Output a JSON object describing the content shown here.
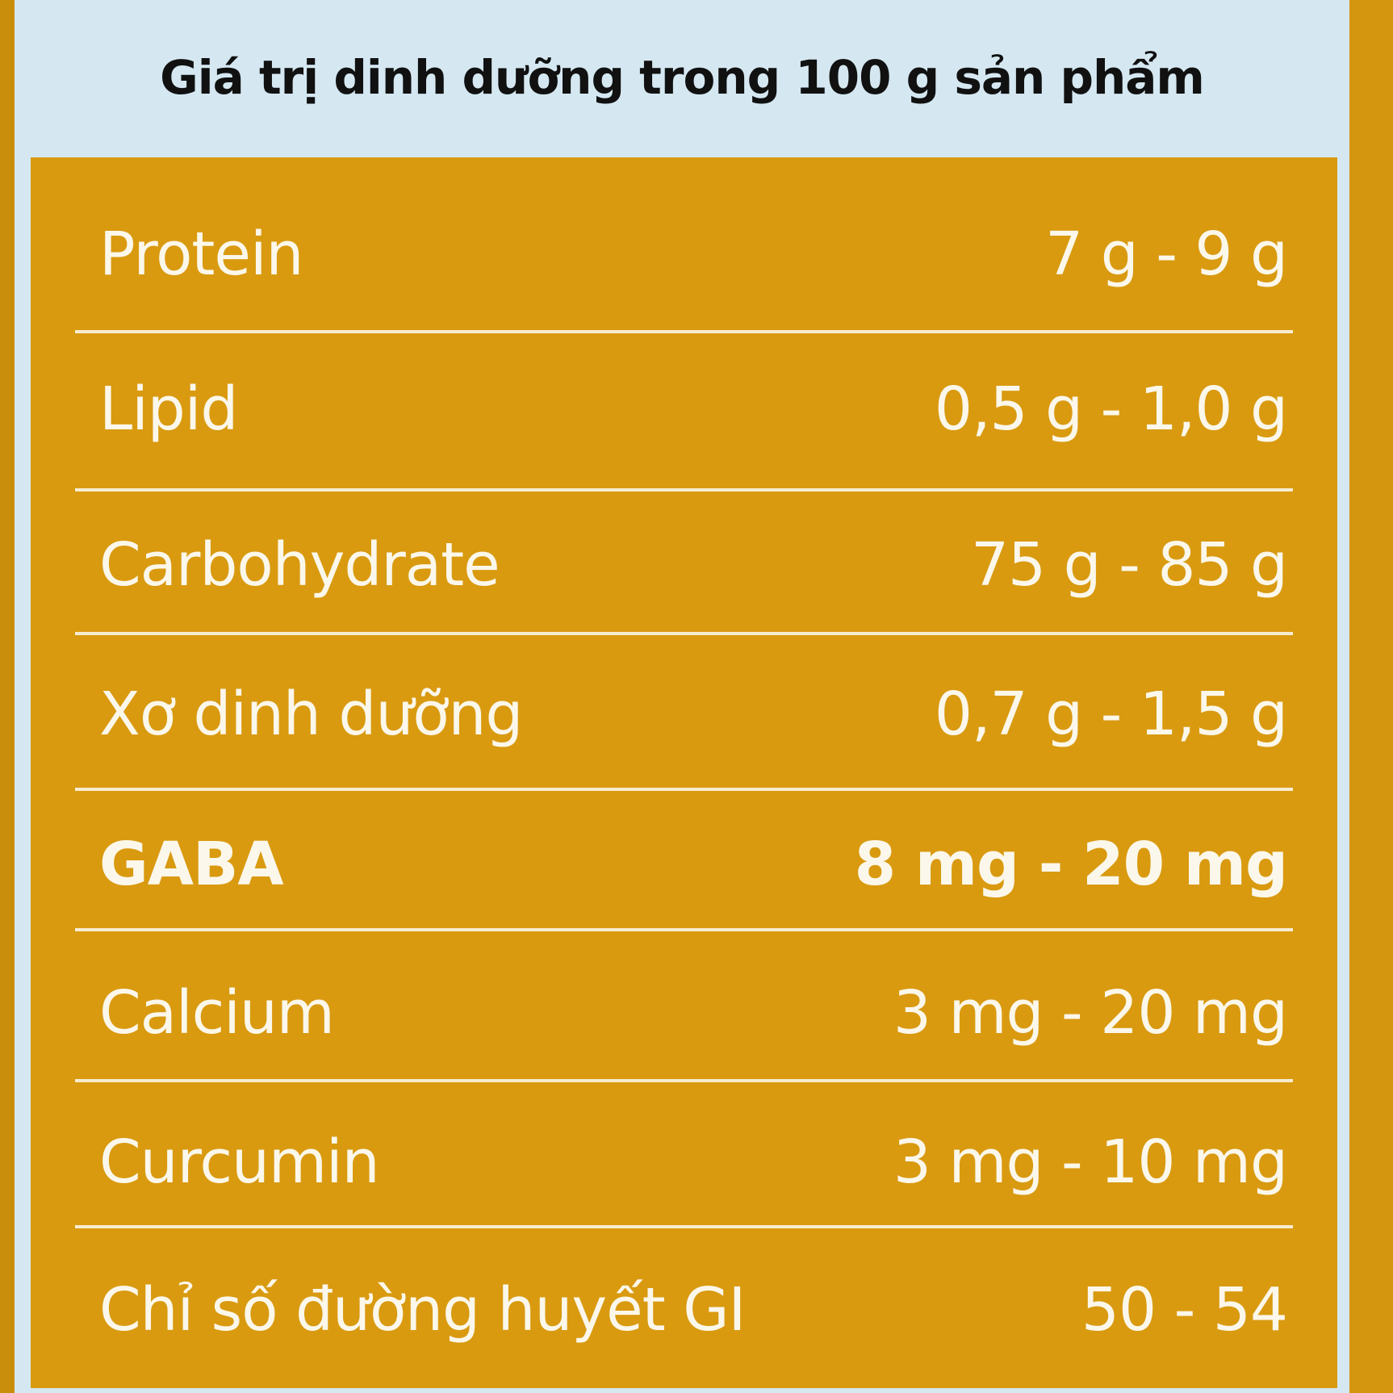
{
  "title": "Giá trị dinh dưỡng trong 100 g sản phẩm",
  "colors": {
    "panel": "#d5e8f2",
    "table": "#d99a10",
    "text": "#fbf7ea"
  },
  "rows": [
    {
      "name": "Protein",
      "value": "7 g - 9 g"
    },
    {
      "name": "Lipid",
      "value": "0,5 g - 1,0 g"
    },
    {
      "name": "Carbohydrate",
      "value": "75 g - 85 g"
    },
    {
      "name": "Xơ dinh dưỡng",
      "value": "0,7 g - 1,5 g"
    },
    {
      "name": "GABA",
      "value": "8 mg - 20 mg"
    },
    {
      "name": "Calcium",
      "value": "3 mg - 20 mg"
    },
    {
      "name": "Curcumin",
      "value": "3 mg - 10 mg"
    },
    {
      "name": "Chỉ số đường huyết GI",
      "value": "50 - 54"
    }
  ]
}
